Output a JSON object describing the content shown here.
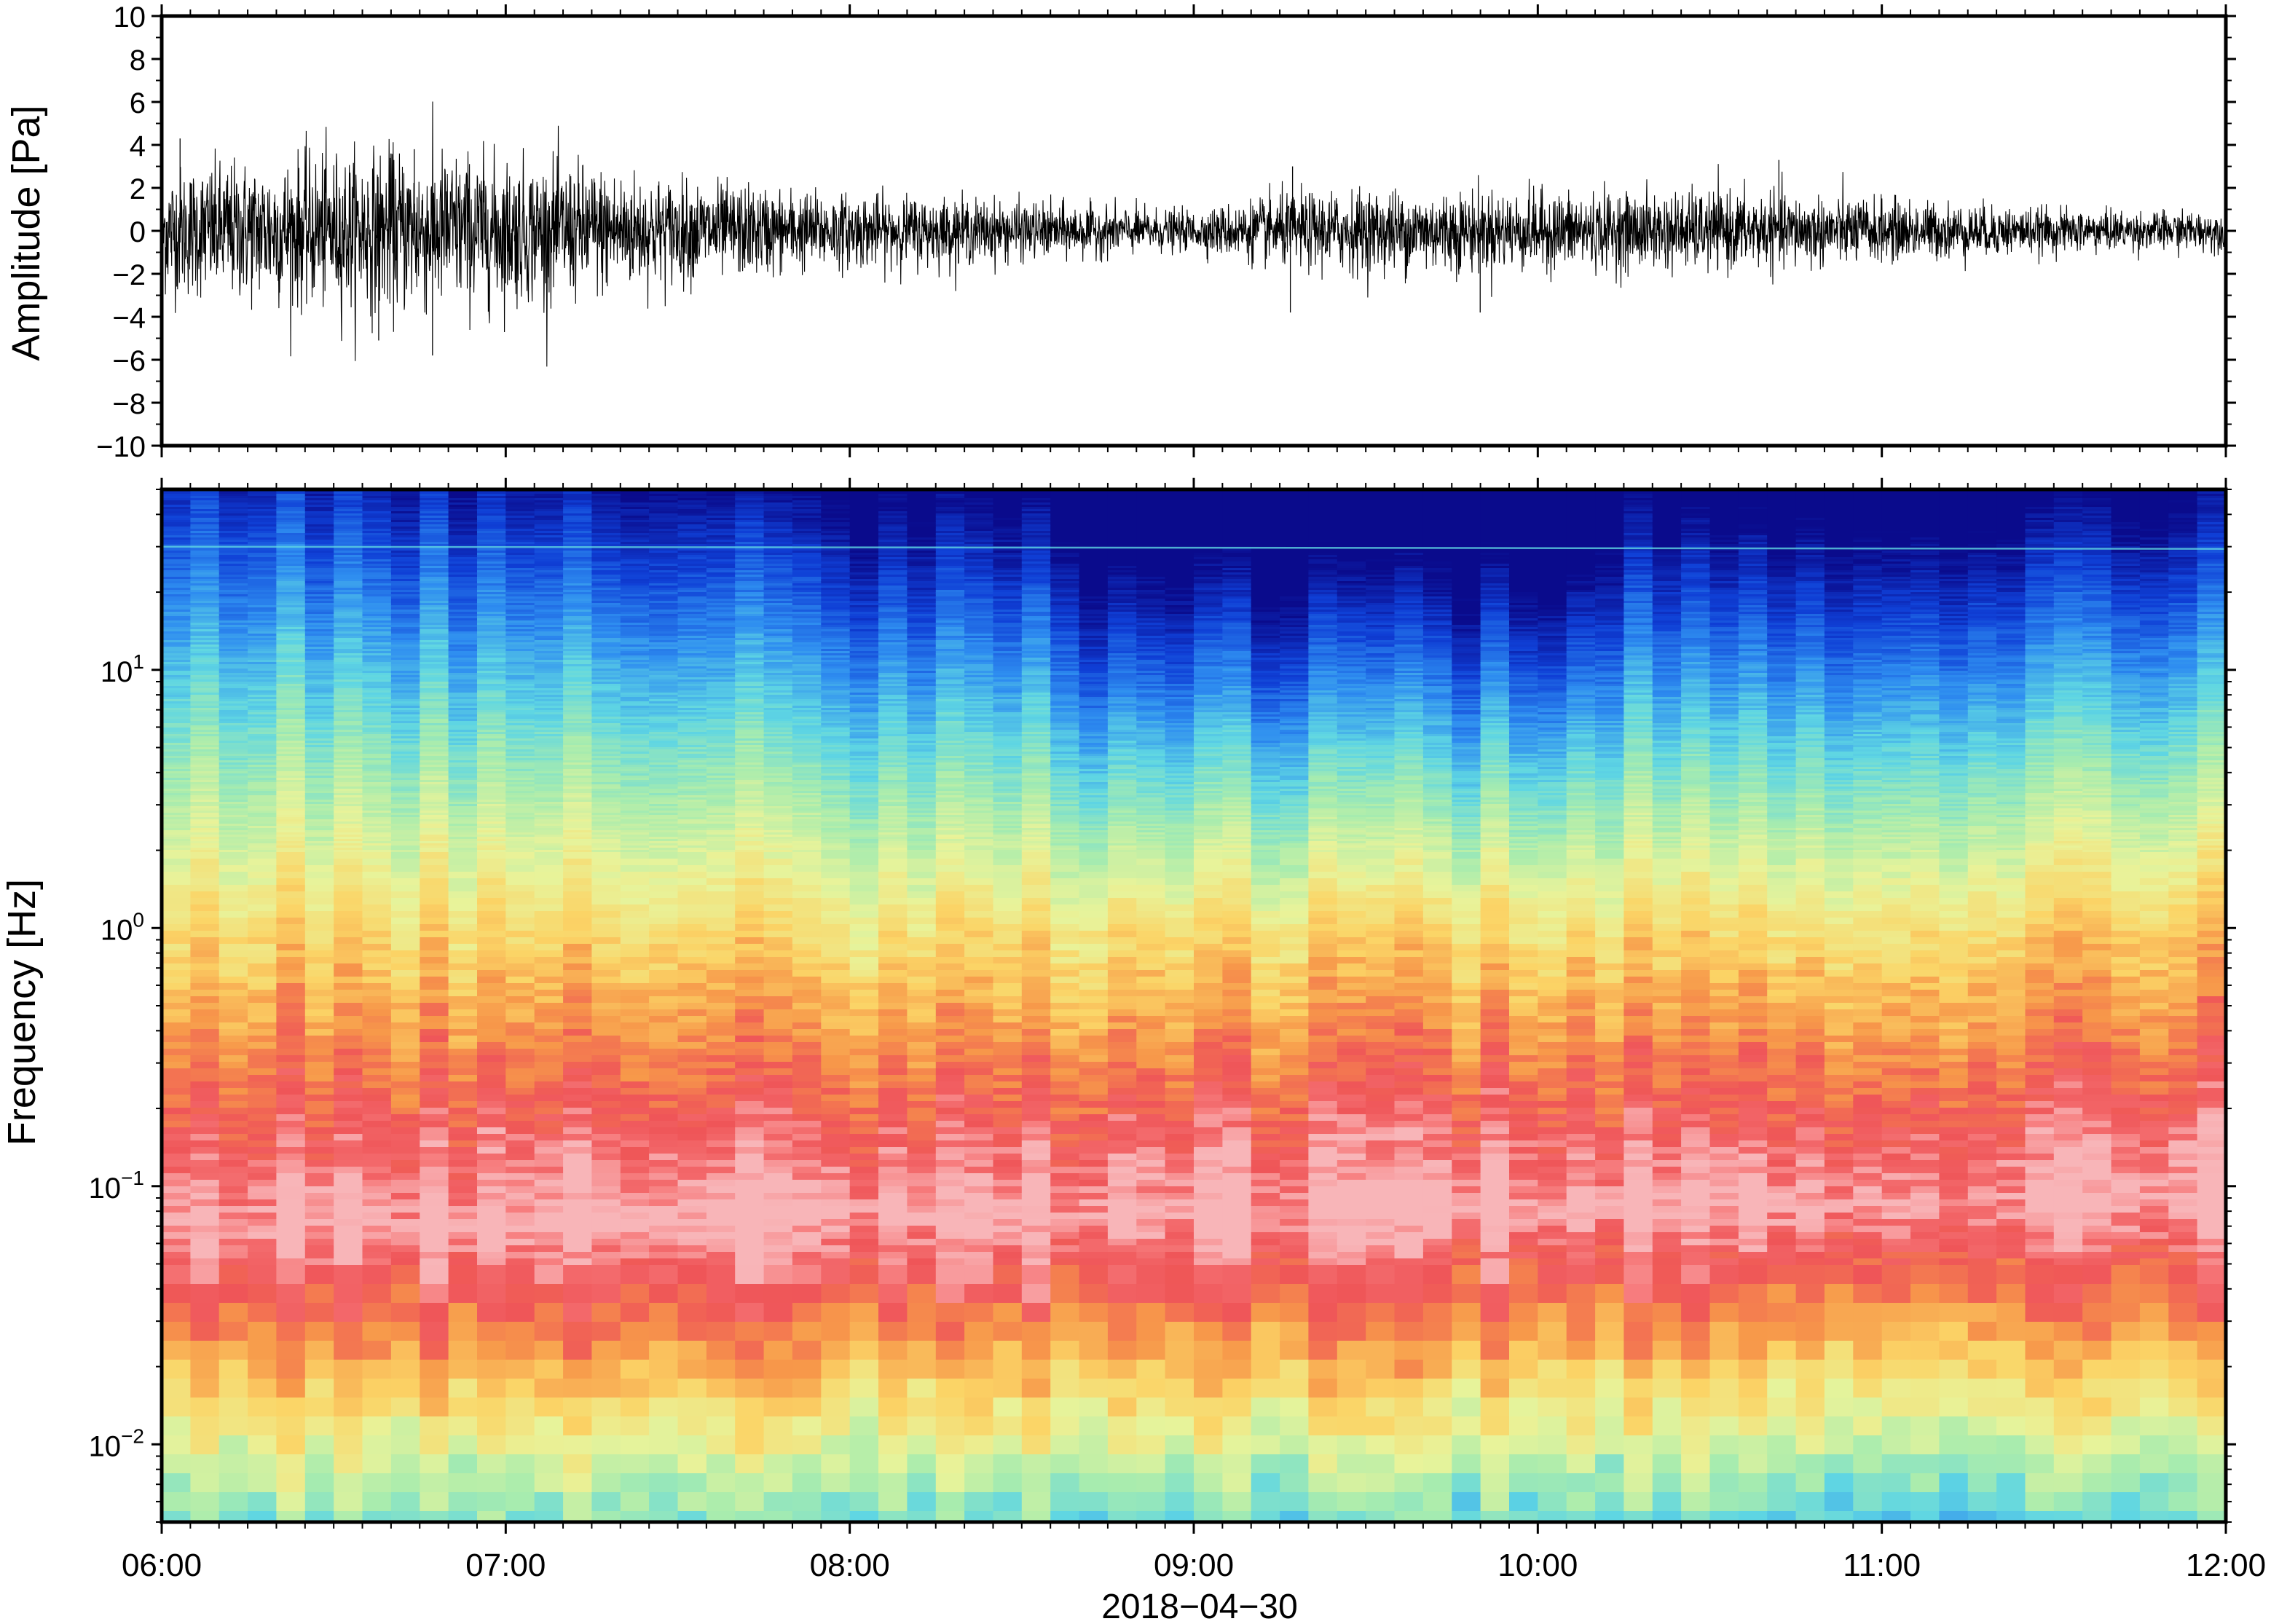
{
  "chart_data": [
    {
      "type": "line",
      "ylabel": "Amplitude [Pa]",
      "ylim": [
        -10,
        10
      ],
      "yticks": [
        -10,
        -8,
        -6,
        -4,
        -2,
        0,
        2,
        4,
        6,
        8,
        10
      ],
      "ytick_labels": [
        "−10",
        "−8",
        "−6",
        "−4",
        "−2",
        "0",
        "2",
        "4",
        "6",
        "8",
        "10"
      ],
      "xlim": [
        "06:00",
        "12:00"
      ],
      "grid": false,
      "series": [
        {
          "color": "#000000",
          "envelope_hours": [
            6.0,
            6.25,
            6.5,
            6.75,
            7.0,
            7.25,
            7.5,
            7.75,
            8.0,
            8.25,
            8.5,
            8.75,
            9.0,
            9.25,
            9.5,
            9.75,
            10.0,
            10.25,
            10.5,
            10.75,
            11.0,
            11.25,
            11.5,
            11.75,
            12.0
          ],
          "envelope_amplitude": [
            2.6,
            2.9,
            3.2,
            3.4,
            3.0,
            2.7,
            2.1,
            1.8,
            1.5,
            1.4,
            1.2,
            1.0,
            0.8,
            1.5,
            1.7,
            1.7,
            1.6,
            1.6,
            1.6,
            1.5,
            1.3,
            1.1,
            0.9,
            0.8,
            0.8
          ],
          "spikes": [
            {
              "time": "06:03",
              "value": 4.3
            },
            {
              "time": "06:47",
              "value": -5.8
            },
            {
              "time": "06:38",
              "value": -5.1
            },
            {
              "time": "06:40",
              "value": 3.6
            },
            {
              "time": "06:44",
              "value": 3.8
            },
            {
              "time": "09:17",
              "value": -3.8
            },
            {
              "time": "09:17",
              "value": 3.0
            },
            {
              "time": "09:50",
              "value": -3.8
            },
            {
              "time": "10:42",
              "value": 3.3
            }
          ]
        }
      ]
    },
    {
      "type": "heatmap",
      "ylabel": "Frequency [Hz]",
      "xlabel": "2018−04−30",
      "yscale": "log",
      "ylim": [
        0.005,
        50
      ],
      "yticks": [
        0.01,
        0.1,
        1,
        10
      ],
      "ytick_labels": [
        {
          "base": "10",
          "exp": "−2"
        },
        {
          "base": "10",
          "exp": "−1"
        },
        {
          "base": "10",
          "exp": "0"
        },
        {
          "base": "10",
          "exp": "1"
        }
      ],
      "xlim": [
        "06:00",
        "12:00"
      ],
      "xticks": [
        "06:00",
        "07:00",
        "08:00",
        "09:00",
        "10:00",
        "11:00",
        "12:00"
      ],
      "colormap": [
        "#0a0b8c",
        "#0f3fd6",
        "#2e8df0",
        "#5fd6e3",
        "#a8ecae",
        "#e8f39a",
        "#fbd466",
        "#f7984a",
        "#ef5558",
        "#f77f80",
        "#f8b5b8"
      ],
      "line_feature": {
        "frequency": 30,
        "description_color": "#5fd6e3"
      }
    }
  ]
}
